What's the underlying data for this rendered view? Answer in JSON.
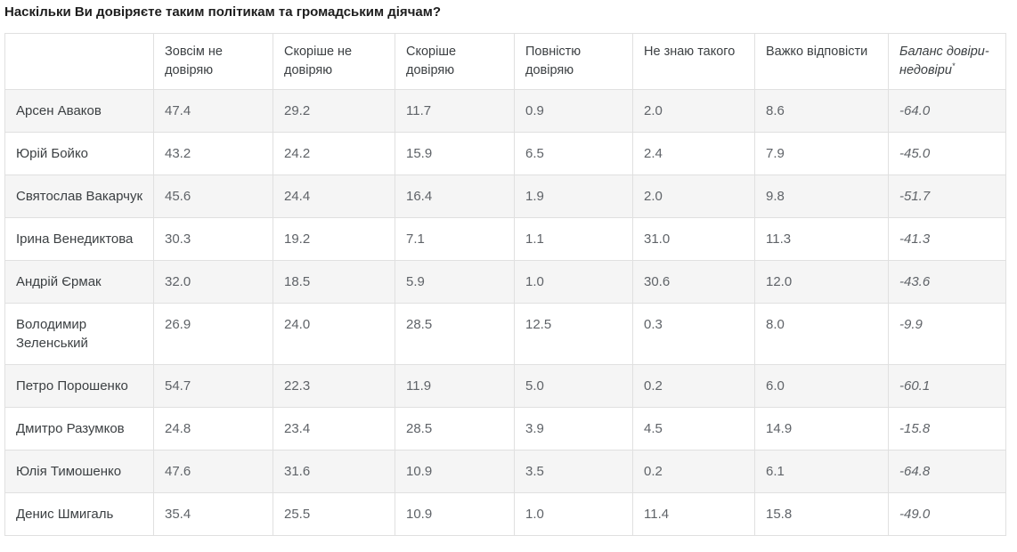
{
  "title": "Наскільки Ви довіряєте таким політикам та громадським діячам?",
  "chart_data": {
    "type": "table",
    "title": "Наскільки Ви довіряєте таким політикам та громадським діячам?",
    "row_header_label": "",
    "column_headers": [
      "Зовсім не довіряю",
      "Скоріше не довіряю",
      "Скоріше довіряю",
      "Повністю довіряю",
      "Не знаю такого",
      "Важко відповісти"
    ],
    "balance_header": "Баланс довіри-недовіри",
    "balance_footnote_mark": "*",
    "value_unit": "percent",
    "rows": [
      {
        "name": "Арсен Аваков",
        "values": [
          "47.4",
          "29.2",
          "11.7",
          "0.9",
          "2.0",
          "8.6"
        ],
        "balance": "-64.0"
      },
      {
        "name": "Юрій Бойко",
        "values": [
          "43.2",
          "24.2",
          "15.9",
          "6.5",
          "2.4",
          "7.9"
        ],
        "balance": "-45.0"
      },
      {
        "name": "Святослав Вакарчук",
        "values": [
          "45.6",
          "24.4",
          "16.4",
          "1.9",
          "2.0",
          "9.8"
        ],
        "balance": "-51.7"
      },
      {
        "name": "Ірина Венедиктова",
        "values": [
          "30.3",
          "19.2",
          "7.1",
          "1.1",
          "31.0",
          "11.3"
        ],
        "balance": "-41.3"
      },
      {
        "name": "Андрій Єрмак",
        "values": [
          "32.0",
          "18.5",
          "5.9",
          "1.0",
          "30.6",
          "12.0"
        ],
        "balance": "-43.6"
      },
      {
        "name": "Володимир Зеленський",
        "values": [
          "26.9",
          "24.0",
          "28.5",
          "12.5",
          "0.3",
          "8.0"
        ],
        "balance": "-9.9"
      },
      {
        "name": "Петро Порошенко",
        "values": [
          "54.7",
          "22.3",
          "11.9",
          "5.0",
          "0.2",
          "6.0"
        ],
        "balance": "-60.1"
      },
      {
        "name": "Дмитро Разумков",
        "values": [
          "24.8",
          "23.4",
          "28.5",
          "3.9",
          "4.5",
          "14.9"
        ],
        "balance": "-15.8"
      },
      {
        "name": "Юлія Тимошенко",
        "values": [
          "47.6",
          "31.6",
          "10.9",
          "3.5",
          "0.2",
          "6.1"
        ],
        "balance": "-64.8"
      },
      {
        "name": "Денис Шмигаль",
        "values": [
          "35.4",
          "25.5",
          "10.9",
          "1.0",
          "11.4",
          "15.8"
        ],
        "balance": "-49.0"
      }
    ]
  }
}
